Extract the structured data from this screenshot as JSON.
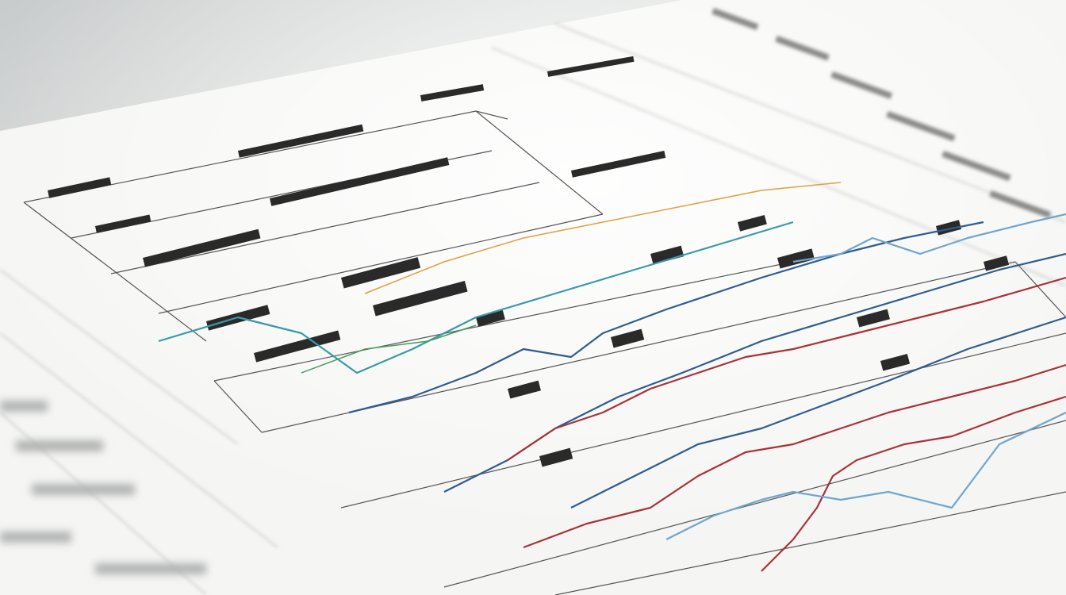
{
  "scene": {
    "subject": "printed-chart-sheet",
    "colors": {
      "background": "#d6d9d9",
      "paper": "#f7f7f5",
      "blue_series": "#2f5d8f",
      "red_series": "#a8323a",
      "teal_series": "#3a9aa8",
      "light_blue_series": "#6fa6cf",
      "orange_accent": "#e0a040",
      "ink": "#333333"
    }
  }
}
